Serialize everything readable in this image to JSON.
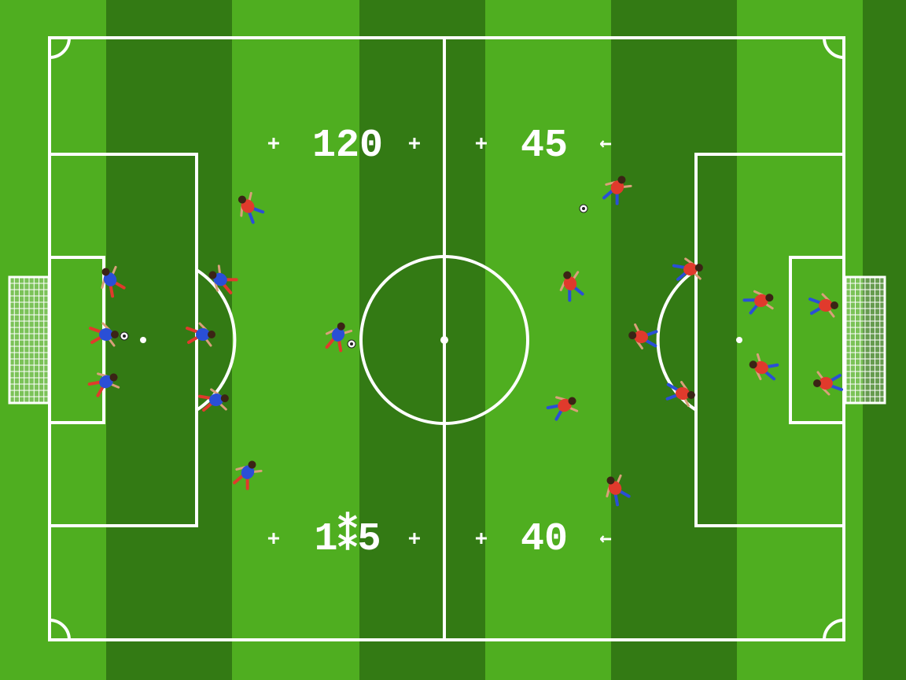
{
  "colors": {
    "grass_light": "#4fae20",
    "grass_dark": "#337a14",
    "lines": "#ffffff",
    "team_blue": "#2a4fd6",
    "team_red": "#e03a2c"
  },
  "field_markings": {
    "top_left_number": "120",
    "top_right_number": "45",
    "bottom_left_number": "1⁑5",
    "bottom_right_number": "40",
    "marker_plus": "+",
    "marker_arrow": "←"
  }
}
